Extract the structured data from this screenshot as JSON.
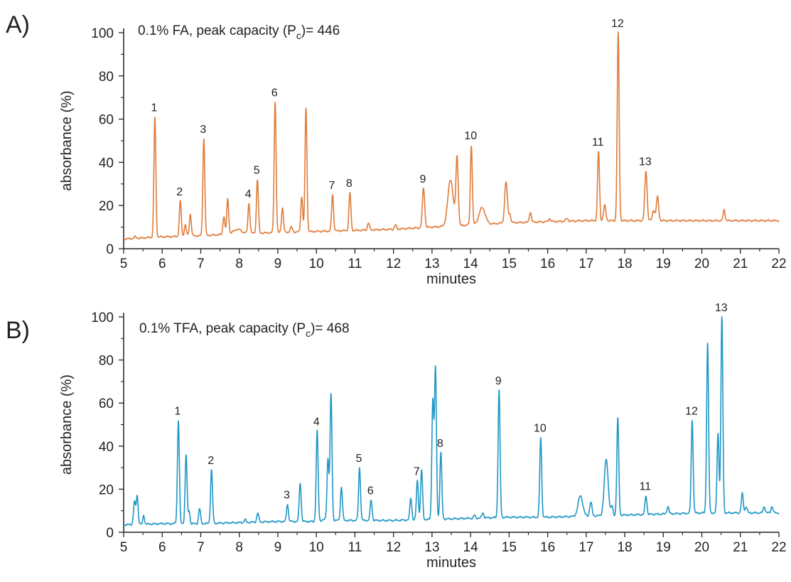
{
  "figure": {
    "panel_letters": [
      "A)",
      "B)"
    ]
  },
  "colors": {
    "panel_a": "#e07b39",
    "panel_b": "#1f96c6",
    "axis": "#222222"
  },
  "chart_data": [
    {
      "type": "line",
      "panel": "A)",
      "annotation": {
        "prefix": "0.1% FA, peak capacity (P",
        "subscript": "c",
        "suffix": ")= 446"
      },
      "xlabel": "minutes",
      "ylabel": "absorbance (%)",
      "xlim": [
        5,
        22
      ],
      "ylim": [
        0,
        100
      ],
      "xticks": [
        5,
        6,
        7,
        8,
        9,
        10,
        11,
        12,
        13,
        14,
        15,
        16,
        17,
        18,
        19,
        20,
        21,
        22
      ],
      "yticks": [
        0,
        20,
        40,
        60,
        80,
        100
      ],
      "grid": false,
      "baseline": [
        [
          5,
          4.5
        ],
        [
          5.5,
          5
        ],
        [
          6,
          5.5
        ],
        [
          7,
          6
        ],
        [
          8,
          7
        ],
        [
          9,
          7.5
        ],
        [
          10,
          8
        ],
        [
          11,
          8.5
        ],
        [
          12,
          9
        ],
        [
          13,
          10
        ],
        [
          14,
          11
        ],
        [
          15,
          12
        ],
        [
          16,
          12.5
        ],
        [
          17,
          13
        ],
        [
          18,
          13
        ],
        [
          19,
          13
        ],
        [
          20,
          13
        ],
        [
          21,
          13
        ],
        [
          22,
          13
        ]
      ],
      "peaks": [
        {
          "x": 5.3,
          "h": 5.5,
          "w": 0.03
        },
        {
          "x": 5.81,
          "h": 61,
          "w": 0.025,
          "label": "1"
        },
        {
          "x": 6.47,
          "h": 22,
          "w": 0.025,
          "label": "2"
        },
        {
          "x": 6.6,
          "h": 11,
          "w": 0.025
        },
        {
          "x": 6.73,
          "h": 16,
          "w": 0.025
        },
        {
          "x": 7.08,
          "h": 51,
          "w": 0.025,
          "label": "3"
        },
        {
          "x": 7.6,
          "h": 15,
          "w": 0.025
        },
        {
          "x": 7.7,
          "h": 23,
          "w": 0.025
        },
        {
          "x": 7.95,
          "h": 9,
          "w": 0.1
        },
        {
          "x": 8.25,
          "h": 21,
          "w": 0.025,
          "label": "4"
        },
        {
          "x": 8.47,
          "h": 32,
          "w": 0.025,
          "label": "5"
        },
        {
          "x": 8.93,
          "h": 68,
          "w": 0.025,
          "label": "6"
        },
        {
          "x": 9.12,
          "h": 19,
          "w": 0.025
        },
        {
          "x": 9.35,
          "h": 10,
          "w": 0.03
        },
        {
          "x": 9.62,
          "h": 24,
          "w": 0.025
        },
        {
          "x": 9.73,
          "h": 65,
          "w": 0.025
        },
        {
          "x": 10.42,
          "h": 25,
          "w": 0.025,
          "label": "7"
        },
        {
          "x": 10.87,
          "h": 26,
          "w": 0.025,
          "label": "8"
        },
        {
          "x": 11.35,
          "h": 12,
          "w": 0.025
        },
        {
          "x": 12.05,
          "h": 11,
          "w": 0.025
        },
        {
          "x": 12.78,
          "h": 28,
          "w": 0.03,
          "label": "9"
        },
        {
          "x": 13.48,
          "h": 32,
          "w": 0.07
        },
        {
          "x": 13.65,
          "h": 42,
          "w": 0.03
        },
        {
          "x": 14.02,
          "h": 48,
          "w": 0.025,
          "label": "10"
        },
        {
          "x": 14.3,
          "h": 19,
          "w": 0.08
        },
        {
          "x": 14.92,
          "h": 31,
          "w": 0.035
        },
        {
          "x": 15.02,
          "h": 16,
          "w": 0.025
        },
        {
          "x": 15.55,
          "h": 17,
          "w": 0.025
        },
        {
          "x": 16.05,
          "h": 14,
          "w": 0.025
        },
        {
          "x": 16.5,
          "h": 14,
          "w": 0.03
        },
        {
          "x": 17.32,
          "h": 45,
          "w": 0.025,
          "label": "11"
        },
        {
          "x": 17.48,
          "h": 20,
          "w": 0.03
        },
        {
          "x": 17.83,
          "h": 100,
          "w": 0.025,
          "label": "12"
        },
        {
          "x": 18.55,
          "h": 36,
          "w": 0.03,
          "label": "13"
        },
        {
          "x": 18.75,
          "h": 18,
          "w": 0.03
        },
        {
          "x": 18.85,
          "h": 24,
          "w": 0.03
        },
        {
          "x": 20.58,
          "h": 18,
          "w": 0.025
        }
      ]
    },
    {
      "type": "line",
      "panel": "B)",
      "annotation": {
        "prefix": "0.1% TFA, peak capacity (P",
        "subscript": "c",
        "suffix": ")= 468"
      },
      "xlabel": "minutes",
      "ylabel": "absorbance (%)",
      "xlim": [
        5,
        22
      ],
      "ylim": [
        0,
        100
      ],
      "xticks": [
        5,
        6,
        7,
        8,
        9,
        10,
        11,
        12,
        13,
        14,
        15,
        16,
        17,
        18,
        19,
        20,
        21,
        22
      ],
      "yticks": [
        0,
        20,
        40,
        60,
        80,
        100
      ],
      "grid": false,
      "baseline": [
        [
          5,
          3.5
        ],
        [
          6,
          4
        ],
        [
          7,
          4
        ],
        [
          8,
          4.5
        ],
        [
          9,
          5
        ],
        [
          10,
          5
        ],
        [
          10.25,
          6
        ],
        [
          10.5,
          5.5
        ],
        [
          11,
          5.5
        ],
        [
          12,
          5.5
        ],
        [
          13,
          6
        ],
        [
          14,
          6.5
        ],
        [
          15,
          7
        ],
        [
          16,
          7
        ],
        [
          17,
          7.5
        ],
        [
          18,
          8
        ],
        [
          19,
          8.5
        ],
        [
          20,
          9
        ],
        [
          21,
          9
        ],
        [
          22,
          9
        ]
      ],
      "peaks": [
        {
          "x": 5.28,
          "h": 14,
          "w": 0.025
        },
        {
          "x": 5.35,
          "h": 17,
          "w": 0.025
        },
        {
          "x": 5.52,
          "h": 8,
          "w": 0.02
        },
        {
          "x": 6.42,
          "h": 52,
          "w": 0.025,
          "label": "1"
        },
        {
          "x": 6.62,
          "h": 36,
          "w": 0.025
        },
        {
          "x": 6.7,
          "h": 10,
          "w": 0.02
        },
        {
          "x": 6.97,
          "h": 11,
          "w": 0.025
        },
        {
          "x": 7.28,
          "h": 29,
          "w": 0.025,
          "label": "2"
        },
        {
          "x": 8.15,
          "h": 6,
          "w": 0.02
        },
        {
          "x": 8.48,
          "h": 9,
          "w": 0.025
        },
        {
          "x": 9.25,
          "h": 13,
          "w": 0.025,
          "label": "3"
        },
        {
          "x": 9.58,
          "h": 23,
          "w": 0.025
        },
        {
          "x": 10.02,
          "h": 47,
          "w": 0.025,
          "label": "4"
        },
        {
          "x": 10.3,
          "h": 34,
          "w": 0.025
        },
        {
          "x": 10.38,
          "h": 64,
          "w": 0.025
        },
        {
          "x": 10.65,
          "h": 21,
          "w": 0.025
        },
        {
          "x": 11.12,
          "h": 30,
          "w": 0.025,
          "label": "5"
        },
        {
          "x": 11.42,
          "h": 15,
          "w": 0.025,
          "label": "6"
        },
        {
          "x": 12.45,
          "h": 16,
          "w": 0.025
        },
        {
          "x": 12.62,
          "h": 24,
          "w": 0.025,
          "label": "7"
        },
        {
          "x": 12.73,
          "h": 29,
          "w": 0.025
        },
        {
          "x": 13.02,
          "h": 61,
          "w": 0.025
        },
        {
          "x": 13.09,
          "h": 76,
          "w": 0.025
        },
        {
          "x": 13.23,
          "h": 37,
          "w": 0.025,
          "label": "8"
        },
        {
          "x": 14.1,
          "h": 8,
          "w": 0.02
        },
        {
          "x": 14.32,
          "h": 9,
          "w": 0.025
        },
        {
          "x": 14.74,
          "h": 66,
          "w": 0.025,
          "label": "9"
        },
        {
          "x": 15.82,
          "h": 44,
          "w": 0.025,
          "label": "10"
        },
        {
          "x": 16.85,
          "h": 17,
          "w": 0.06
        },
        {
          "x": 17.12,
          "h": 14,
          "w": 0.03
        },
        {
          "x": 17.52,
          "h": 34,
          "w": 0.05
        },
        {
          "x": 17.67,
          "h": 12,
          "w": 0.025
        },
        {
          "x": 17.82,
          "h": 53,
          "w": 0.025
        },
        {
          "x": 18.55,
          "h": 17,
          "w": 0.025,
          "label": "11"
        },
        {
          "x": 19.12,
          "h": 12,
          "w": 0.025
        },
        {
          "x": 19.75,
          "h": 52,
          "w": 0.025,
          "label": "12"
        },
        {
          "x": 20.15,
          "h": 88,
          "w": 0.025
        },
        {
          "x": 20.42,
          "h": 46,
          "w": 0.025
        },
        {
          "x": 20.52,
          "h": 100,
          "w": 0.025,
          "label": "13"
        },
        {
          "x": 21.05,
          "h": 18,
          "w": 0.025
        },
        {
          "x": 21.15,
          "h": 12,
          "w": 0.025
        },
        {
          "x": 21.62,
          "h": 12,
          "w": 0.025
        },
        {
          "x": 21.82,
          "h": 12,
          "w": 0.025
        }
      ]
    }
  ]
}
